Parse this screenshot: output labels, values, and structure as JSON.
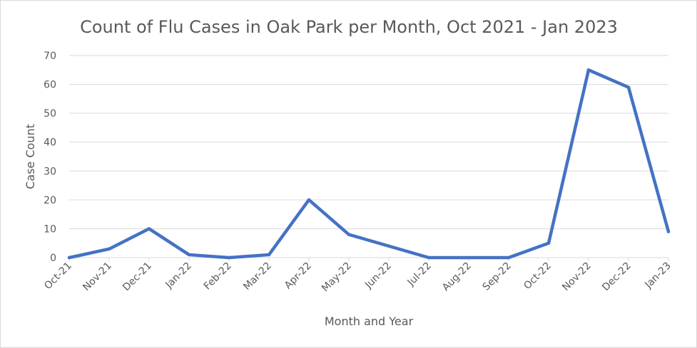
{
  "chart_data": {
    "type": "line",
    "title": "Count of Flu Cases in Oak Park per Month, Oct 2021 - Jan 2023",
    "xlabel": "Month and Year",
    "ylabel": "Case Count",
    "ylim": [
      0,
      70
    ],
    "yticks": [
      0,
      10,
      20,
      30,
      40,
      50,
      60,
      70
    ],
    "grid": true,
    "legend": "none",
    "categories": [
      "Oct-21",
      "Nov-21",
      "Dec-21",
      "Jan-22",
      "Feb-22",
      "Mar-22",
      "Apr-22",
      "May-22",
      "Jun-22",
      "Jul-22",
      "Aug-22",
      "Sep-22",
      "Oct-22",
      "Nov-22",
      "Dec-22",
      "Jan-23"
    ],
    "series": [
      {
        "values": [
          0,
          3,
          10,
          1,
          0,
          1,
          20,
          8,
          4,
          0,
          0,
          0,
          5,
          65,
          59,
          9
        ],
        "color": "#4472c4"
      }
    ]
  },
  "colors": {
    "line": "#4472c4",
    "grid": "#d9d9d9",
    "text": "#595959"
  }
}
